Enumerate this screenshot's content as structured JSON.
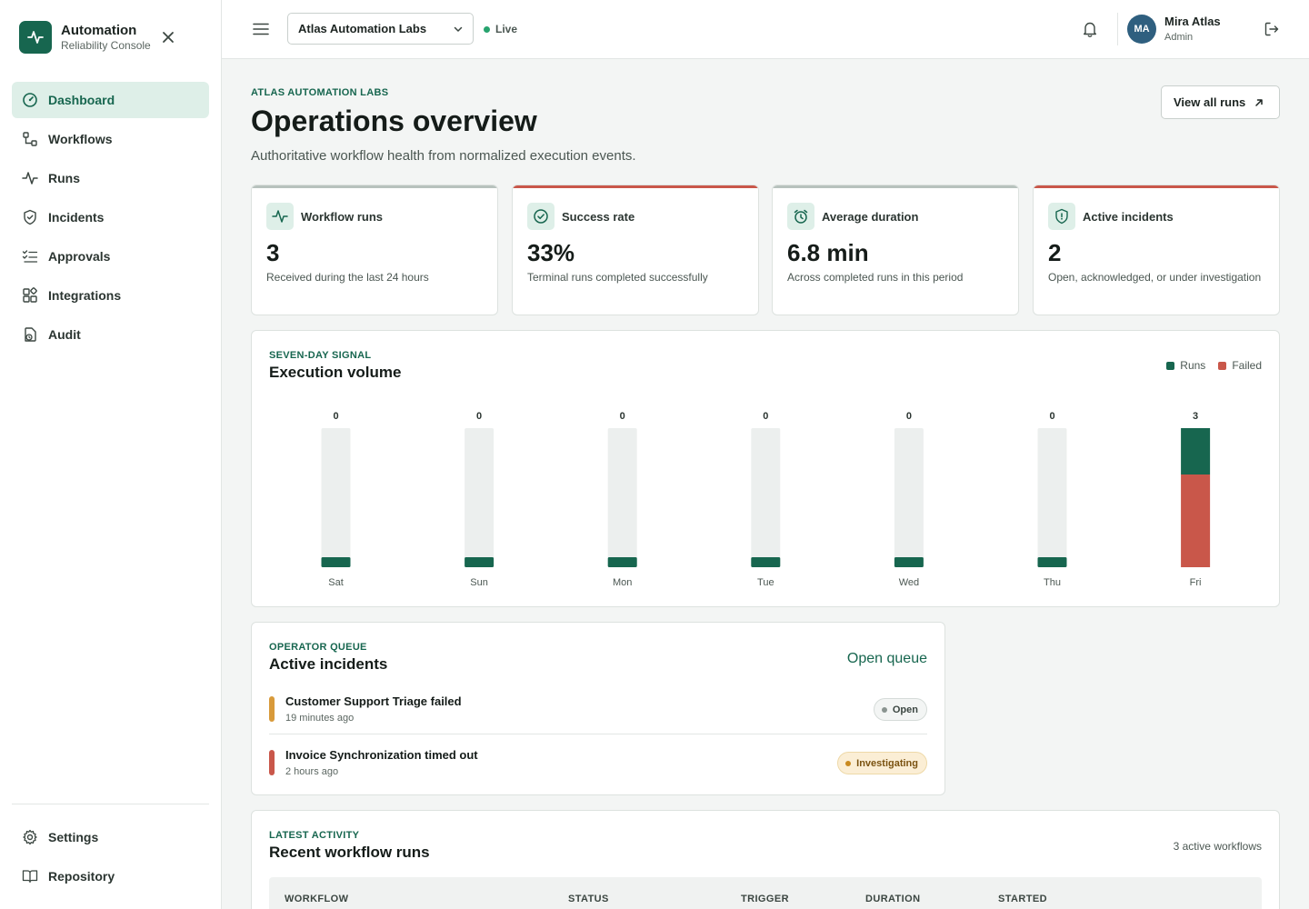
{
  "brand": {
    "title": "Automation",
    "subtitle": "Reliability Console"
  },
  "nav": {
    "items": [
      {
        "label": "Dashboard",
        "icon": "dashboard-icon",
        "active": true
      },
      {
        "label": "Workflows",
        "icon": "workflows-icon"
      },
      {
        "label": "Runs",
        "icon": "runs-icon"
      },
      {
        "label": "Incidents",
        "icon": "shield-icon"
      },
      {
        "label": "Approvals",
        "icon": "checklist-icon"
      },
      {
        "label": "Integrations",
        "icon": "integrations-icon"
      },
      {
        "label": "Audit",
        "icon": "audit-icon"
      }
    ],
    "bottom": [
      {
        "label": "Settings",
        "icon": "gear-icon"
      },
      {
        "label": "Repository",
        "icon": "book-icon"
      }
    ]
  },
  "topbar": {
    "org": "Atlas Automation Labs",
    "status": "Live",
    "user": {
      "initials": "MA",
      "name": "Mira Atlas",
      "role": "Admin"
    }
  },
  "page": {
    "eyebrow": "ATLAS AUTOMATION LABS",
    "title": "Operations overview",
    "subtitle": "Authoritative workflow health from normalized execution events.",
    "view_all": "View all runs"
  },
  "kpis": [
    {
      "label": "Workflow runs",
      "value": "3",
      "desc": "Received during the last 24 hours",
      "icon": "activity-icon",
      "accent": "#b7c2bd"
    },
    {
      "label": "Success rate",
      "value": "33%",
      "desc": "Terminal runs completed successfully",
      "icon": "check-circle-icon",
      "accent": "#c9574a"
    },
    {
      "label": "Average duration",
      "value": "6.8 min",
      "desc": "Across completed runs in this period",
      "icon": "alarm-clock-icon",
      "accent": "#b7c2bd"
    },
    {
      "label": "Active incidents",
      "value": "2",
      "desc": "Open, acknowledged, or under investigation",
      "icon": "shield-icon",
      "accent": "#c9574a"
    }
  ],
  "volume": {
    "eyebrow": "SEVEN-DAY SIGNAL",
    "title": "Execution volume",
    "legend": [
      {
        "label": "Runs",
        "color": "#17664f"
      },
      {
        "label": "Failed",
        "color": "#c9574a"
      }
    ]
  },
  "chart_data": {
    "type": "bar",
    "title": "Execution volume",
    "categories": [
      "Sat",
      "Sun",
      "Mon",
      "Tue",
      "Wed",
      "Thu",
      "Fri"
    ],
    "series": [
      {
        "name": "Runs",
        "values": [
          0,
          0,
          0,
          0,
          0,
          0,
          1
        ],
        "color": "#17664f"
      },
      {
        "name": "Failed",
        "values": [
          0,
          0,
          0,
          0,
          0,
          0,
          2
        ],
        "color": "#c9574a"
      }
    ],
    "totals": [
      "0",
      "0",
      "0",
      "0",
      "0",
      "0",
      "3"
    ],
    "ylim": [
      0,
      3
    ],
    "grid": false,
    "legend": "top-right"
  },
  "queue": {
    "eyebrow": "OPERATOR QUEUE",
    "title": "Active incidents",
    "link": "Open queue",
    "items": [
      {
        "title": "Customer Support Triage failed",
        "time": "19 minutes ago",
        "status": "Open",
        "accent": "#d89a3a",
        "badge_bg": "#f3f5f4",
        "badge_border": "#d5dbd8",
        "badge_color": "#3b4641",
        "dot": "#8a9490"
      },
      {
        "title": "Invoice Synchronization timed out",
        "time": "2 hours ago",
        "status": "Investigating",
        "accent": "#c9574a",
        "badge_bg": "#fbeed5",
        "badge_border": "#eed9a8",
        "badge_color": "#7a5210",
        "dot": "#c98a1f"
      }
    ]
  },
  "recent": {
    "eyebrow": "LATEST ACTIVITY",
    "title": "Recent workflow runs",
    "meta": "3 active workflows",
    "columns": [
      "WORKFLOW",
      "STATUS",
      "TRIGGER",
      "DURATION",
      "STARTED"
    ]
  }
}
